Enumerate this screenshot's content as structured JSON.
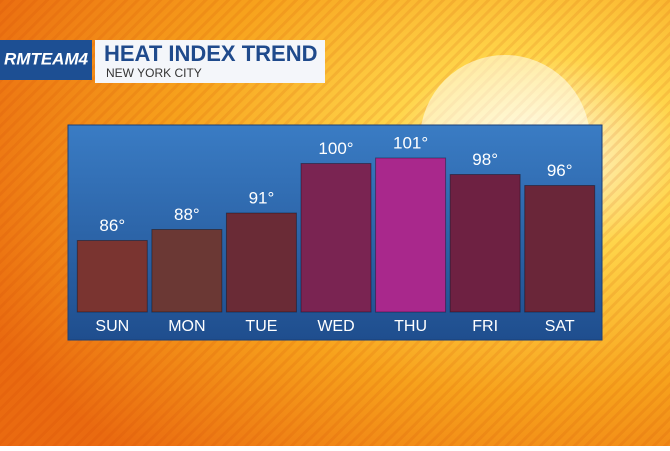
{
  "chart_data": {
    "type": "bar",
    "logo": "RMTEAM4",
    "title": "HEAT INDEX TREND",
    "subtitle": "NEW YORK CITY",
    "categories": [
      "SUN",
      "MON",
      "TUE",
      "WED",
      "THU",
      "FRI",
      "SAT"
    ],
    "values": [
      86,
      88,
      91,
      100,
      101,
      98,
      96
    ],
    "value_labels": [
      "86°",
      "88°",
      "91°",
      "100°",
      "101°",
      "98°",
      "96°"
    ],
    "colors": [
      "#7a3430",
      "#6b3834",
      "#6a2b36",
      "#7a2452",
      "#a9288c",
      "#6e2142",
      "#6a2639"
    ],
    "ylim": [
      73,
      107
    ]
  }
}
